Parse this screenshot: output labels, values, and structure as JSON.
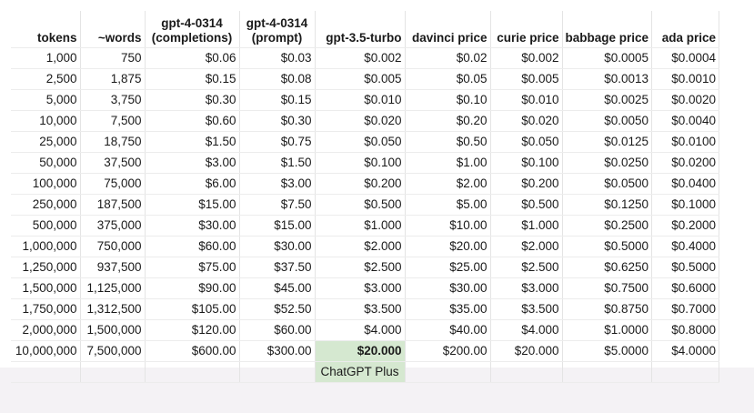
{
  "columns": [
    {
      "line1": "",
      "line2": "tokens"
    },
    {
      "line1": "",
      "line2": "~words"
    },
    {
      "line1": "gpt-4-0314",
      "line2": "(completions)"
    },
    {
      "line1": "gpt-4-0314",
      "line2": "(prompt)"
    },
    {
      "line1": "",
      "line2": "gpt-3.5-turbo"
    },
    {
      "line1": "",
      "line2": "davinci price"
    },
    {
      "line1": "",
      "line2": "curie price"
    },
    {
      "line1": "",
      "line2": "babbage price"
    },
    {
      "line1": "",
      "line2": "ada price"
    }
  ],
  "rows": [
    [
      "1,000",
      "750",
      "$0.06",
      "$0.03",
      "$0.002",
      "$0.02",
      "$0.002",
      "$0.0005",
      "$0.0004"
    ],
    [
      "2,500",
      "1,875",
      "$0.15",
      "$0.08",
      "$0.005",
      "$0.05",
      "$0.005",
      "$0.0013",
      "$0.0010"
    ],
    [
      "5,000",
      "3,750",
      "$0.30",
      "$0.15",
      "$0.010",
      "$0.10",
      "$0.010",
      "$0.0025",
      "$0.0020"
    ],
    [
      "10,000",
      "7,500",
      "$0.60",
      "$0.30",
      "$0.020",
      "$0.20",
      "$0.020",
      "$0.0050",
      "$0.0040"
    ],
    [
      "25,000",
      "18,750",
      "$1.50",
      "$0.75",
      "$0.050",
      "$0.50",
      "$0.050",
      "$0.0125",
      "$0.0100"
    ],
    [
      "50,000",
      "37,500",
      "$3.00",
      "$1.50",
      "$0.100",
      "$1.00",
      "$0.100",
      "$0.0250",
      "$0.0200"
    ],
    [
      "100,000",
      "75,000",
      "$6.00",
      "$3.00",
      "$0.200",
      "$2.00",
      "$0.200",
      "$0.0500",
      "$0.0400"
    ],
    [
      "250,000",
      "187,500",
      "$15.00",
      "$7.50",
      "$0.500",
      "$5.00",
      "$0.500",
      "$0.1250",
      "$0.1000"
    ],
    [
      "500,000",
      "375,000",
      "$30.00",
      "$15.00",
      "$1.000",
      "$10.00",
      "$1.000",
      "$0.2500",
      "$0.2000"
    ],
    [
      "1,000,000",
      "750,000",
      "$60.00",
      "$30.00",
      "$2.000",
      "$20.00",
      "$2.000",
      "$0.5000",
      "$0.4000"
    ],
    [
      "1,250,000",
      "937,500",
      "$75.00",
      "$37.50",
      "$2.500",
      "$25.00",
      "$2.500",
      "$0.6250",
      "$0.5000"
    ],
    [
      "1,500,000",
      "1,125,000",
      "$90.00",
      "$45.00",
      "$3.000",
      "$30.00",
      "$3.000",
      "$0.7500",
      "$0.6000"
    ],
    [
      "1,750,000",
      "1,312,500",
      "$105.00",
      "$52.50",
      "$3.500",
      "$35.00",
      "$3.500",
      "$0.8750",
      "$0.7000"
    ],
    [
      "2,000,000",
      "1,500,000",
      "$120.00",
      "$60.00",
      "$4.000",
      "$40.00",
      "$4.000",
      "$1.0000",
      "$0.8000"
    ],
    [
      "10,000,000",
      "7,500,000",
      "$600.00",
      "$300.00",
      "$20.000",
      "$200.00",
      "$20.000",
      "$5.0000",
      "$4.0000"
    ]
  ],
  "note": "ChatGPT Plus",
  "highlight_color": "#d5e8d0"
}
